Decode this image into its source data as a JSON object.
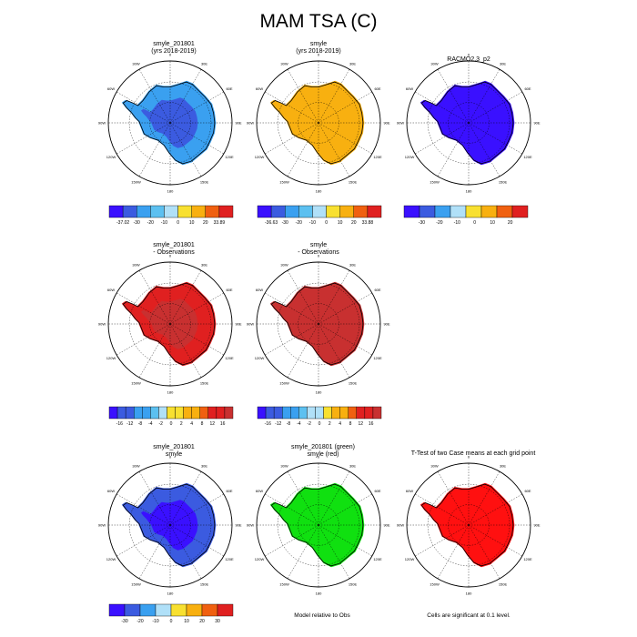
{
  "title": "MAM TSA (C)",
  "colors": {
    "blue1": "#3a10ff",
    "blue2": "#3b5be0",
    "blue3": "#3aa0f0",
    "blue4": "#5cc0f0",
    "lightblue": "#b0e0f8",
    "yellow": "#f8e030",
    "orange": "#f8b010",
    "orangered": "#f06010",
    "red": "#e02020",
    "darkred": "#c83030",
    "green": "#10e010",
    "sigred": "#ff1010"
  },
  "lon_labels": [
    "0",
    "30E",
    "60E",
    "90E",
    "120E",
    "150E",
    "180",
    "150W",
    "120W",
    "90W",
    "60W",
    "30W"
  ],
  "chart_data": [
    {
      "type": "heatmap",
      "id": "p1",
      "title": "smyle_201801",
      "subtitle": "(yrs 2018-2019)",
      "fill": "blue3",
      "inner": "blue2",
      "colorbar": "cb1"
    },
    {
      "type": "heatmap",
      "id": "p2",
      "title": "smyle",
      "subtitle": "(yrs 2018-2019)",
      "fill": "orange",
      "inner": "orange",
      "colorbar": "cb2"
    },
    {
      "type": "heatmap",
      "id": "p3",
      "title": "RACMO2.3_p2",
      "subtitle": "",
      "fill": "blue1",
      "inner": "blue1",
      "colorbar": "cb3"
    },
    {
      "type": "heatmap",
      "id": "p4",
      "title": "smyle_201801",
      "subtitle": "- Observations",
      "fill": "red",
      "inner": "darkred",
      "colorbar": "cb4"
    },
    {
      "type": "heatmap",
      "id": "p5",
      "title": "smyle",
      "subtitle": "- Observations",
      "fill": "darkred",
      "inner": "darkred",
      "colorbar": "cb5"
    },
    {
      "type": "heatmap",
      "id": "p7",
      "title": "smyle_201801",
      "subtitle": "smyle",
      "fill": "blue2",
      "inner": "blue1",
      "colorbar": "cb7"
    },
    {
      "type": "heatmap",
      "id": "p8",
      "title": "smyle_201801 (green)",
      "subtitle": "smyle (red)",
      "fill": "green",
      "inner": "green",
      "colorbar": ""
    },
    {
      "type": "heatmap",
      "id": "p9",
      "title": "T-Test of two Case means at each grid point",
      "subtitle": "",
      "fill": "sigred",
      "inner": "sigred",
      "colorbar": ""
    }
  ],
  "colorbars": {
    "cb1": {
      "colors": [
        "blue1",
        "blue2",
        "blue3",
        "blue4",
        "lightblue",
        "yellow",
        "orange",
        "orangered",
        "red"
      ],
      "labels": [
        "-37.02",
        "-30",
        "-20",
        "-10",
        "0",
        "10",
        "20",
        "33.89"
      ]
    },
    "cb2": {
      "colors": [
        "blue1",
        "blue2",
        "blue3",
        "blue4",
        "lightblue",
        "yellow",
        "orange",
        "orangered",
        "red"
      ],
      "labels": [
        "-36.63",
        "-30",
        "-20",
        "-10",
        "0",
        "10",
        "20",
        "33.88"
      ]
    },
    "cb3": {
      "colors": [
        "blue1",
        "blue2",
        "blue3",
        "lightblue",
        "yellow",
        "orange",
        "orangered",
        "red"
      ],
      "labels": [
        "-30",
        "-20",
        "-10",
        "0",
        "10",
        "20"
      ]
    },
    "cb4": {
      "colors": [
        "blue1",
        "blue2",
        "blue2",
        "blue3",
        "blue3",
        "blue4",
        "lightblue",
        "yellow",
        "yellow",
        "orange",
        "orange",
        "orangered",
        "red",
        "red",
        "darkred"
      ],
      "labels": [
        "-16",
        "-12",
        "-8",
        "-4",
        "-2",
        "0",
        "2",
        "4",
        "8",
        "12",
        "16"
      ]
    },
    "cb5": {
      "colors": [
        "blue1",
        "blue2",
        "blue2",
        "blue3",
        "blue3",
        "blue4",
        "lightblue",
        "lightblue",
        "yellow",
        "orange",
        "orange",
        "orangered",
        "red",
        "red",
        "darkred"
      ],
      "labels": [
        "-16",
        "-12",
        "-8",
        "-4",
        "-2",
        "0",
        "2",
        "4",
        "8",
        "12",
        "16"
      ]
    },
    "cb7": {
      "colors": [
        "blue1",
        "blue2",
        "blue3",
        "lightblue",
        "yellow",
        "orange",
        "orangered",
        "red"
      ],
      "labels": [
        "-30",
        "-20",
        "-10",
        "0",
        "10",
        "20",
        "30"
      ]
    }
  },
  "notes": {
    "model_relative": "Model relative to Obs",
    "significance": "Cells are significant at 0.1 level."
  }
}
